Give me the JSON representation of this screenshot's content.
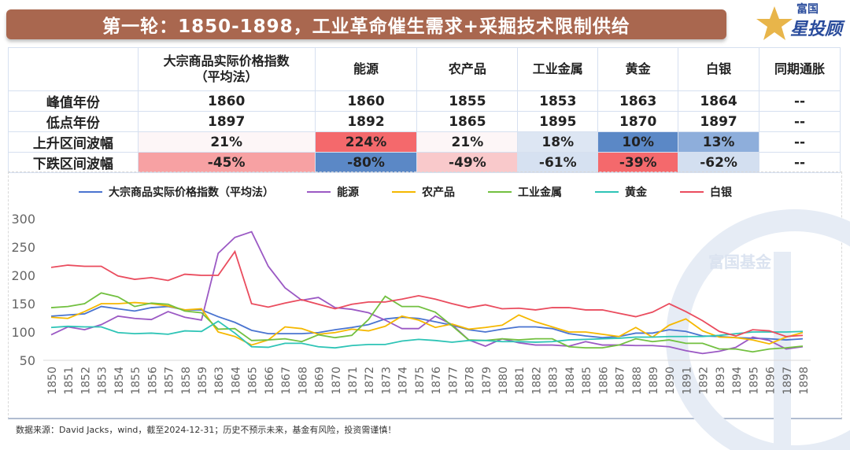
{
  "title": "第一轮：1850-1898，工业革命催生需求+采掘技术限制供给",
  "logo": {
    "line1": "富国",
    "line2": "星投顾",
    "watermark": "富国基金"
  },
  "table": {
    "headers": [
      "",
      "大宗商品实际价格指数（平均法）",
      "能源",
      "农产品",
      "工业金属",
      "黄金",
      "白银",
      "同期通胀"
    ],
    "rows": [
      {
        "label": "峰值年份",
        "cells": [
          "1860",
          "1860",
          "1855",
          "1853",
          "1863",
          "1864",
          "--"
        ],
        "colors": [
          "",
          "",
          "",
          "",
          "",
          "",
          ""
        ]
      },
      {
        "label": "低点年份",
        "cells": [
          "1897",
          "1892",
          "1865",
          "1895",
          "1870",
          "1897",
          "--"
        ],
        "colors": [
          "",
          "",
          "",
          "",
          "",
          "",
          ""
        ]
      },
      {
        "label": "上升区间波幅",
        "cells": [
          "21%",
          "224%",
          "21%",
          "18%",
          "10%",
          "13%",
          "--"
        ],
        "colors": [
          "#fdf6f7",
          "#f4696c",
          "#fdf6f7",
          "#dde6f3",
          "#5b88c6",
          "#8eaedb",
          ""
        ]
      },
      {
        "label": "下跌区间波幅",
        "cells": [
          "-45%",
          "-80%",
          "-49%",
          "-61%",
          "-39%",
          "-62%",
          "--"
        ],
        "colors": [
          "#f7a1a3",
          "#5b88c6",
          "#f9c9cb",
          "#d6e1f1",
          "#f4696c",
          "#d3dff0",
          ""
        ]
      }
    ]
  },
  "chart_data": {
    "type": "line",
    "categories": [
      "1850",
      "1851",
      "1852",
      "1853",
      "1854",
      "1855",
      "1856",
      "1857",
      "1858",
      "1859",
      "1863",
      "1864",
      "1865",
      "1866",
      "1867",
      "1868",
      "1869",
      "1870",
      "1871",
      "1872",
      "1873",
      "1874",
      "1875",
      "1876",
      "1877",
      "1878",
      "1879",
      "1880",
      "1881",
      "1882",
      "1883",
      "1884",
      "1885",
      "1886",
      "1887",
      "1888",
      "1889",
      "1890",
      "1891",
      "1892",
      "1893",
      "1894",
      "1895",
      "1896",
      "1897",
      "1898"
    ],
    "ylim": [
      50,
      300
    ],
    "yticks": [
      300,
      250,
      200,
      150,
      100,
      50
    ],
    "legend_position": "top",
    "series": [
      {
        "name": "大宗商品实际价格指数（平均法）",
        "color": "#4a74d0",
        "values": [
          128,
          130,
          132,
          145,
          141,
          137,
          143,
          145,
          139,
          139,
          127,
          117,
          103,
          97,
          97,
          97,
          99,
          104,
          108,
          113,
          123,
          126,
          124,
          118,
          112,
          104,
          100,
          105,
          109,
          109,
          106,
          97,
          93,
          90,
          92,
          98,
          98,
          104,
          101,
          93,
          92,
          90,
          89,
          88,
          86,
          88
        ]
      },
      {
        "name": "能源",
        "color": "#9b59c4",
        "values": [
          95,
          109,
          104,
          113,
          128,
          124,
          122,
          136,
          126,
          121,
          239,
          267,
          277,
          216,
          178,
          156,
          161,
          143,
          140,
          134,
          121,
          106,
          106,
          128,
          113,
          86,
          75,
          88,
          81,
          77,
          77,
          75,
          83,
          77,
          77,
          76,
          76,
          74,
          67,
          62,
          66,
          73,
          91,
          85,
          70,
          74
        ]
      },
      {
        "name": "农产品",
        "color": "#f5b800",
        "values": [
          126,
          124,
          136,
          150,
          150,
          152,
          150,
          146,
          139,
          141,
          100,
          92,
          77,
          86,
          109,
          106,
          96,
          99,
          105,
          102,
          110,
          128,
          121,
          108,
          114,
          105,
          108,
          112,
          130,
          118,
          109,
          100,
          100,
          96,
          92,
          108,
          91,
          112,
          123,
          102,
          91,
          90,
          86,
          79,
          91,
          99
        ]
      },
      {
        "name": "工业金属",
        "color": "#72c040",
        "values": [
          143,
          145,
          150,
          169,
          162,
          145,
          151,
          149,
          137,
          134,
          105,
          106,
          85,
          86,
          88,
          83,
          95,
          90,
          94,
          122,
          163,
          145,
          145,
          135,
          111,
          86,
          85,
          88,
          86,
          88,
          88,
          74,
          72,
          72,
          77,
          88,
          83,
          86,
          80,
          80,
          70,
          70,
          65,
          70,
          72,
          75
        ]
      },
      {
        "name": "黄金",
        "color": "#2ec4b6",
        "values": [
          108,
          110,
          109,
          109,
          99,
          97,
          98,
          96,
          102,
          101,
          119,
          98,
          74,
          73,
          80,
          80,
          74,
          72,
          76,
          78,
          78,
          84,
          87,
          85,
          82,
          85,
          85,
          83,
          83,
          82,
          83,
          86,
          87,
          88,
          89,
          91,
          91,
          92,
          92,
          92,
          94,
          97,
          100,
          100,
          100,
          101
        ]
      },
      {
        "name": "白银",
        "color": "#ea4c5e",
        "values": [
          214,
          218,
          216,
          216,
          199,
          193,
          196,
          191,
          202,
          200,
          200,
          242,
          150,
          144,
          151,
          157,
          149,
          141,
          149,
          153,
          153,
          158,
          164,
          158,
          150,
          143,
          148,
          141,
          142,
          139,
          143,
          143,
          139,
          139,
          133,
          127,
          135,
          150,
          136,
          120,
          101,
          93,
          104,
          102,
          92,
          94
        ]
      }
    ]
  },
  "footer": "数据来源：David Jacks，wind，截至2024-12-31；历史不预示未来，基金有风险，投资需谨慎！"
}
